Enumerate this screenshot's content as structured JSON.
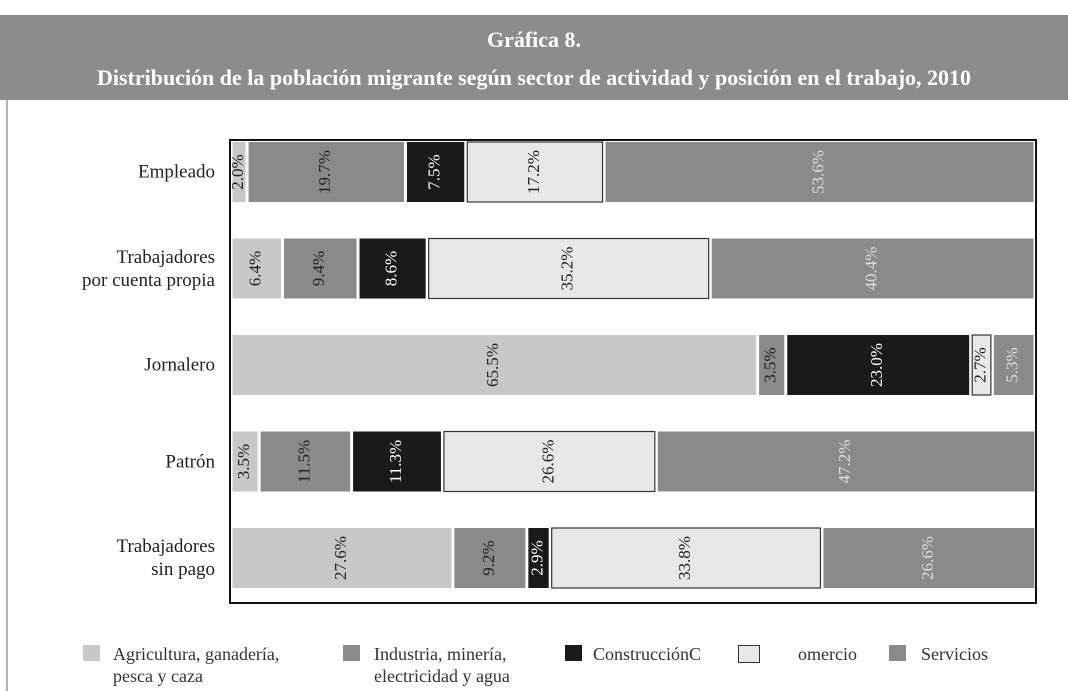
{
  "chart_data": {
    "type": "stacked_barh",
    "title": "Gráfica 8.",
    "subtitle": "Distribución de la población migrante según sector de actividad y posición en el trabajo, 2010",
    "categories": [
      "Empleado",
      "Trabajadores\npor cuenta propia",
      "Jornalero",
      "Patrón",
      "Trabajadores\nsin pago"
    ],
    "xlim": [
      0,
      100
    ],
    "series": [
      {
        "name": "Agricultura, ganadería,\npesca y caza",
        "color": "#c8c8c8",
        "values": [
          2.0,
          6.4,
          65.5,
          3.5,
          27.6
        ],
        "value_labels": [
          "2.0%",
          "6.4%",
          "65.5%",
          "3.5%",
          "27.6%"
        ]
      },
      {
        "name": "Industria, minería,\nelectricidad y agua",
        "color": "#8a8a8a",
        "values": [
          19.7,
          9.4,
          3.5,
          11.5,
          9.2
        ],
        "value_labels": [
          "19.7%",
          "9.4%",
          "3.5%",
          "11.5%",
          "9.2%"
        ]
      },
      {
        "name": "ConstrucciónC",
        "color": "#1a1a1a",
        "values": [
          7.5,
          8.6,
          23.0,
          11.3,
          2.9
        ],
        "value_labels": [
          "7.5%",
          "8.6%",
          "23.0%",
          "11.3%",
          "2.9%"
        ]
      },
      {
        "name": "omercio",
        "color": "#e8e8e8",
        "values": [
          17.2,
          35.2,
          2.7,
          26.6,
          33.8
        ],
        "value_labels": [
          "17.2%",
          "35.2%",
          "2.7%",
          "26.6%",
          "33.8%"
        ]
      },
      {
        "name": "Servicios",
        "color": "#8a8a8a",
        "values": [
          53.6,
          40.4,
          5.3,
          47.2,
          26.6
        ],
        "value_labels": [
          "53.6%",
          "40.4%",
          "5.3%",
          "47.2%",
          "26.6%"
        ]
      }
    ]
  }
}
